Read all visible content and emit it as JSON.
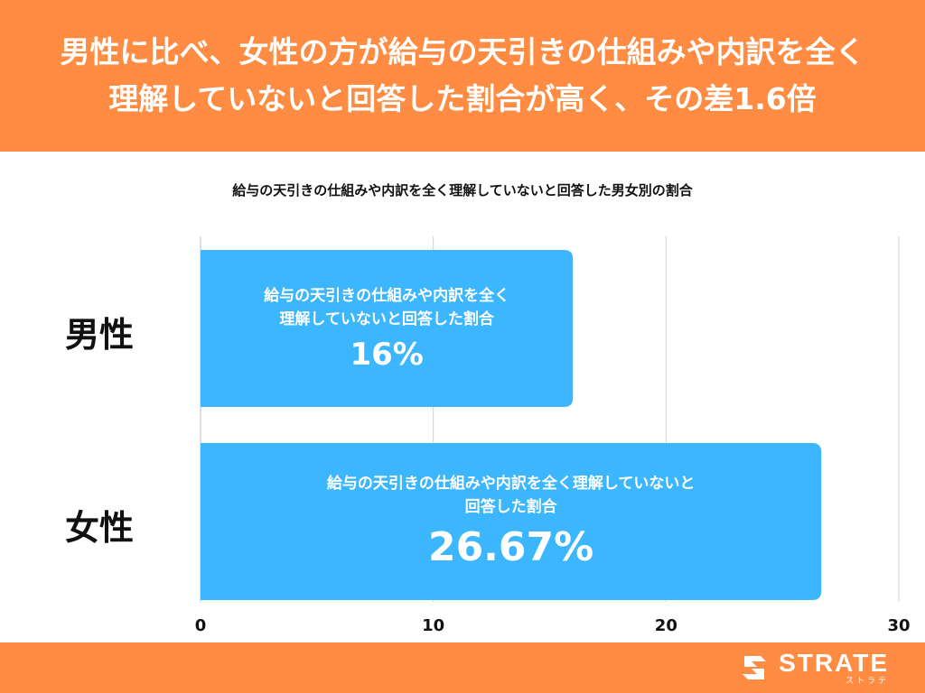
{
  "header": {
    "title": "男性に比べ、女性の方が給与の天引きの仕組みや内訳を全く理解していないと回答した割合が高く、その差1.6倍"
  },
  "chart_data": {
    "type": "bar",
    "orientation": "horizontal",
    "title": "給与の天引きの仕組みや内訳を全く理解していないと回答した男女別の割合",
    "categories": [
      "男性",
      "女性"
    ],
    "values": [
      16,
      26.67
    ],
    "value_labels": [
      "16%",
      "26.67%"
    ],
    "bar_descriptions": [
      [
        "給与の天引きの仕組みや内訳を全く",
        "理解していないと回答した割合"
      ],
      [
        "給与の天引きの仕組みや内訳を全く理解していないと",
        "回答した割合"
      ]
    ],
    "xlim": [
      0,
      30
    ],
    "xticks": [
      0,
      10,
      20,
      30
    ],
    "grid": true,
    "bar_color": "#3BB6FF"
  },
  "footer": {
    "logo_main": "STRATE",
    "logo_sub": "ストラテ"
  },
  "colors": {
    "accent": "#FF8C42",
    "bar": "#3BB6FF",
    "grid": "#D0D0D0"
  }
}
